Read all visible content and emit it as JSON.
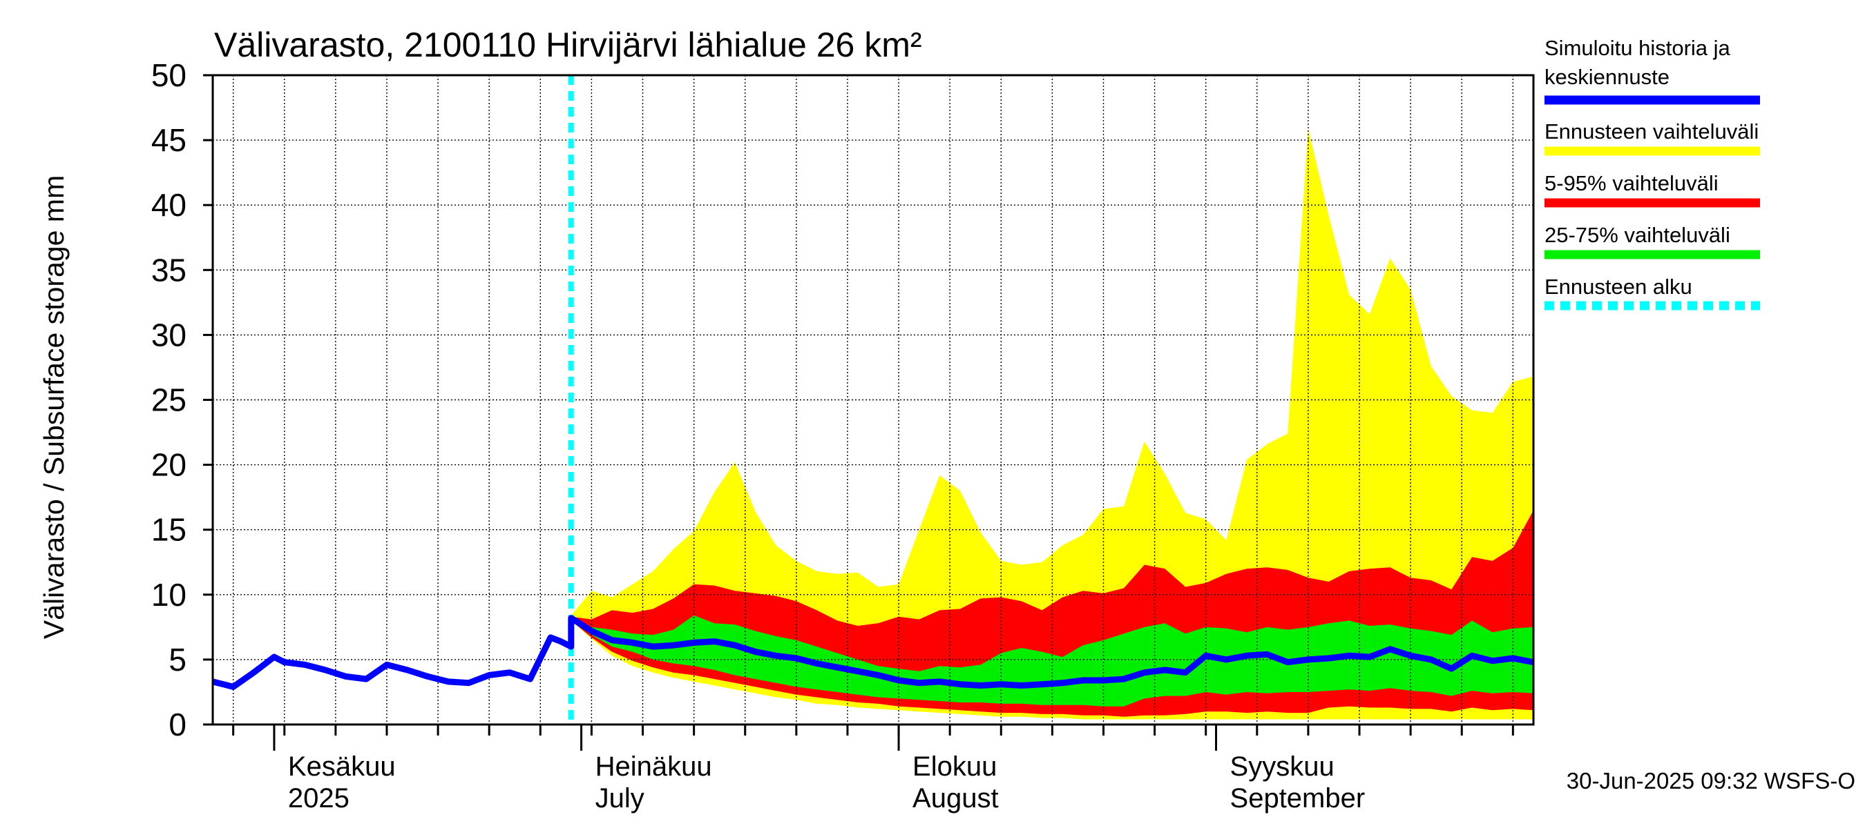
{
  "chart_data": {
    "type": "area",
    "title": "Välivarasto, 2100110 Hirvijärvi lähialue 26 km²",
    "ylabel": "Välivarasto / Subsurface storage  mm",
    "ylim": [
      0,
      50
    ],
    "yticks": [
      0,
      5,
      10,
      15,
      20,
      25,
      30,
      35,
      40,
      45,
      50
    ],
    "xlim": [
      "2025-05-26",
      "2025-10-02"
    ],
    "grid": true,
    "legend_position": "right",
    "forecast_start": "2025-06-30",
    "timestamp": "30-Jun-2025 09:32 WSFS-O",
    "month_labels": [
      {
        "date": "2025-06-01",
        "line1": "Kesäkuu",
        "line2": "2025"
      },
      {
        "date": "2025-07-01",
        "line1": "Heinäkuu",
        "line2": "July"
      },
      {
        "date": "2025-08-01",
        "line1": "Elokuu",
        "line2": "August"
      },
      {
        "date": "2025-09-01",
        "line1": "Syyskuu",
        "line2": "September"
      }
    ],
    "legend": [
      {
        "line1": "Simuloitu historia ja",
        "line2": "keskiennuste",
        "color": "#0000ff",
        "style": "solid"
      },
      {
        "line1": "Ennusteen vaihteluväli",
        "line2": "",
        "color": "#ffff00",
        "style": "solid"
      },
      {
        "line1": "5-95% vaihteluväli",
        "line2": "",
        "color": "#ff0000",
        "style": "solid"
      },
      {
        "line1": "25-75% vaihteluväli",
        "line2": "",
        "color": "#00ee00",
        "style": "solid"
      },
      {
        "line1": "Ennusteen alku",
        "line2": "",
        "color": "#00ffff",
        "style": "dashed"
      }
    ],
    "colors": {
      "history": "#0000ff",
      "full_range": "#ffff00",
      "p5_95": "#ff0000",
      "p25_75": "#00ee00",
      "forecast_start": "#00ffff"
    },
    "history": {
      "dates": [
        "2025-05-26",
        "2025-05-28",
        "2025-05-30",
        "2025-06-01",
        "2025-06-02",
        "2025-06-04",
        "2025-06-06",
        "2025-06-08",
        "2025-06-10",
        "2025-06-12",
        "2025-06-14",
        "2025-06-16",
        "2025-06-18",
        "2025-06-20",
        "2025-06-22",
        "2025-06-24",
        "2025-06-26",
        "2025-06-28",
        "2025-06-29",
        "2025-06-30"
      ],
      "values": [
        3.3,
        2.9,
        4.0,
        5.2,
        4.8,
        4.6,
        4.2,
        3.7,
        3.5,
        4.6,
        4.2,
        3.7,
        3.3,
        3.2,
        3.8,
        4.0,
        3.5,
        6.7,
        6.4,
        6.0
      ]
    },
    "forecast": {
      "dates": [
        "2025-06-30",
        "2025-07-02",
        "2025-07-04",
        "2025-07-06",
        "2025-07-08",
        "2025-07-10",
        "2025-07-12",
        "2025-07-14",
        "2025-07-16",
        "2025-07-18",
        "2025-07-20",
        "2025-07-22",
        "2025-07-24",
        "2025-07-26",
        "2025-07-28",
        "2025-07-30",
        "2025-08-01",
        "2025-08-03",
        "2025-08-05",
        "2025-08-07",
        "2025-08-09",
        "2025-08-11",
        "2025-08-13",
        "2025-08-15",
        "2025-08-17",
        "2025-08-19",
        "2025-08-21",
        "2025-08-23",
        "2025-08-25",
        "2025-08-27",
        "2025-08-29",
        "2025-08-31",
        "2025-09-02",
        "2025-09-04",
        "2025-09-06",
        "2025-09-08",
        "2025-09-10",
        "2025-09-12",
        "2025-09-14",
        "2025-09-16",
        "2025-09-18",
        "2025-09-20",
        "2025-09-22",
        "2025-09-24",
        "2025-09-26",
        "2025-09-28",
        "2025-09-30",
        "2025-10-02"
      ],
      "mean": [
        8.2,
        7.2,
        6.5,
        6.3,
        6.0,
        6.1,
        6.3,
        6.4,
        6.1,
        5.6,
        5.3,
        5.1,
        4.7,
        4.4,
        4.1,
        3.8,
        3.4,
        3.2,
        3.3,
        3.1,
        3.0,
        3.1,
        3.0,
        3.1,
        3.2,
        3.4,
        3.4,
        3.5,
        4.0,
        4.2,
        4.0,
        5.3,
        5.0,
        5.3,
        5.4,
        4.8,
        5.0,
        5.1,
        5.3,
        5.2,
        5.8,
        5.3,
        5.0,
        4.3,
        5.3,
        4.9,
        5.1,
        4.8
      ],
      "p25": [
        8.0,
        6.9,
        6.0,
        5.6,
        5.0,
        4.7,
        4.5,
        4.2,
        3.8,
        3.5,
        3.2,
        2.9,
        2.7,
        2.5,
        2.3,
        2.1,
        2.0,
        1.9,
        1.8,
        1.7,
        1.7,
        1.6,
        1.6,
        1.5,
        1.5,
        1.5,
        1.4,
        1.4,
        2.0,
        2.2,
        2.2,
        2.5,
        2.3,
        2.5,
        2.4,
        2.5,
        2.5,
        2.6,
        2.7,
        2.6,
        2.8,
        2.6,
        2.5,
        2.2,
        2.6,
        2.4,
        2.5,
        2.4
      ],
      "p75": [
        8.2,
        7.5,
        7.3,
        7.0,
        6.9,
        7.3,
        8.4,
        7.8,
        7.7,
        7.2,
        6.8,
        6.5,
        6.0,
        5.5,
        5.0,
        4.5,
        4.3,
        4.1,
        4.5,
        4.4,
        4.6,
        5.5,
        5.9,
        5.6,
        5.2,
        6.1,
        6.5,
        7.0,
        7.5,
        7.8,
        7.0,
        7.5,
        7.4,
        7.1,
        7.5,
        7.3,
        7.5,
        7.8,
        8.0,
        7.6,
        7.7,
        7.4,
        7.2,
        6.9,
        8.0,
        7.1,
        7.4,
        7.5
      ],
      "p5": [
        8.0,
        6.7,
        5.6,
        4.9,
        4.4,
        4.0,
        3.8,
        3.5,
        3.2,
        2.9,
        2.6,
        2.3,
        2.1,
        1.9,
        1.7,
        1.6,
        1.4,
        1.3,
        1.2,
        1.1,
        1.0,
        0.9,
        0.9,
        0.8,
        0.8,
        0.7,
        0.7,
        0.6,
        0.7,
        0.7,
        0.8,
        1.0,
        1.0,
        0.9,
        1.0,
        0.9,
        0.9,
        1.3,
        1.4,
        1.3,
        1.3,
        1.2,
        1.2,
        1.0,
        1.3,
        1.1,
        1.2,
        1.1
      ],
      "p95": [
        8.3,
        8.1,
        8.8,
        8.6,
        8.9,
        9.7,
        10.8,
        10.7,
        10.3,
        10.1,
        9.9,
        9.5,
        8.8,
        8.0,
        7.6,
        7.8,
        8.3,
        8.1,
        8.8,
        8.9,
        9.7,
        9.8,
        9.5,
        8.8,
        9.8,
        10.3,
        10.1,
        10.5,
        12.3,
        12.0,
        10.6,
        10.9,
        11.6,
        12.0,
        12.1,
        11.9,
        11.3,
        11.0,
        11.8,
        12.0,
        12.1,
        11.3,
        11.1,
        10.4,
        12.9,
        12.6,
        13.6,
        16.5
      ],
      "min": [
        8.0,
        6.6,
        5.3,
        4.5,
        4.0,
        3.6,
        3.3,
        3.0,
        2.7,
        2.4,
        2.1,
        1.9,
        1.6,
        1.5,
        1.3,
        1.2,
        1.1,
        1.0,
        0.9,
        0.8,
        0.7,
        0.6,
        0.6,
        0.5,
        0.5,
        0.4,
        0.4,
        0.4,
        0.4,
        0.4,
        0.4,
        0.4,
        0.4,
        0.4,
        0.4,
        0.4,
        0.4,
        0.4,
        0.4,
        0.4,
        0.4,
        0.4,
        0.4,
        0.4,
        0.4,
        0.4,
        0.4,
        0.4
      ],
      "max": [
        8.4,
        10.3,
        9.8,
        10.8,
        11.8,
        13.5,
        14.9,
        17.9,
        20.2,
        16.4,
        13.8,
        12.6,
        11.8,
        11.6,
        11.7,
        10.6,
        10.8,
        15.0,
        19.2,
        18.0,
        14.8,
        12.6,
        12.3,
        12.5,
        13.8,
        14.6,
        16.6,
        16.8,
        21.8,
        19.3,
        16.3,
        15.8,
        14.2,
        20.4,
        21.6,
        22.4,
        45.9,
        39.2,
        33.1,
        31.6,
        35.9,
        33.5,
        27.6,
        25.3,
        24.2,
        24.0,
        26.4,
        26.8
      ]
    }
  }
}
